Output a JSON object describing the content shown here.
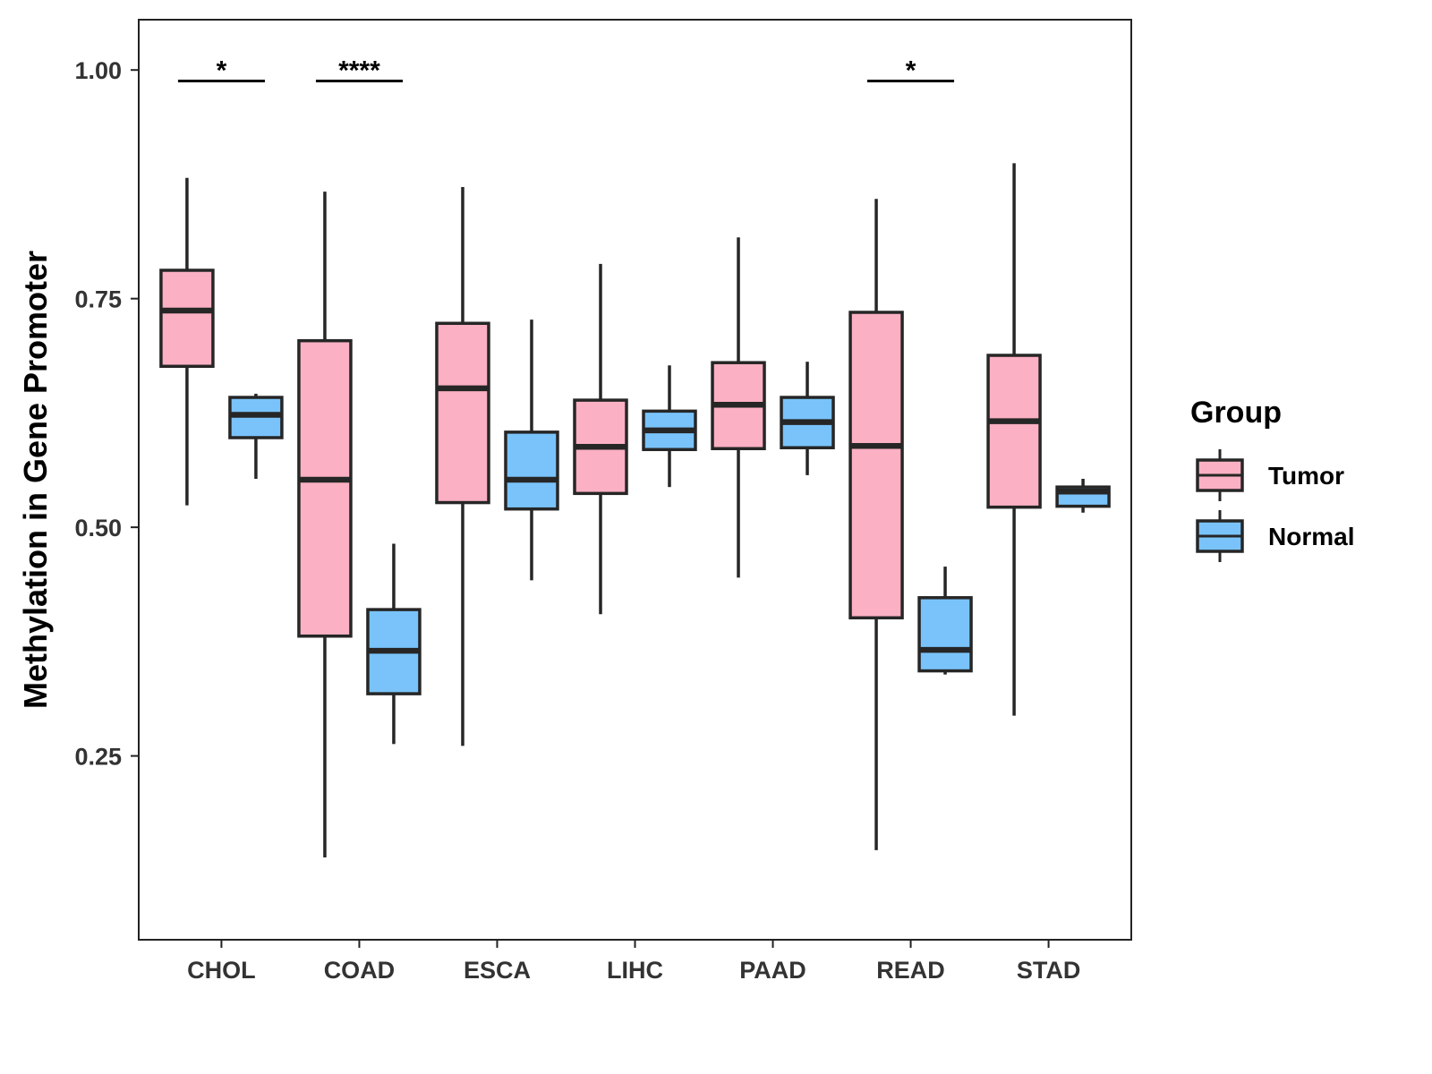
{
  "chart_data": {
    "type": "boxplot",
    "title": "",
    "xlabel": "",
    "ylabel": "Methylation in Gene Promoter",
    "ylim": [
      0.049,
      1.055
    ],
    "yticks": [
      "0.25",
      "0.50",
      "0.75",
      "1.00"
    ],
    "ytick_values": [
      0.25,
      0.5,
      0.75,
      1.0
    ],
    "categories": [
      "CHOL",
      "COAD",
      "ESCA",
      "LIHC",
      "PAAD",
      "READ",
      "STAD"
    ],
    "grid": false,
    "legend": {
      "title": "Group",
      "placement": "right",
      "entries": [
        "Tumor",
        "Normal"
      ]
    },
    "colors": {
      "Tumor": "#FBB0C3",
      "Normal": "#79C3FA",
      "stroke": "#262626"
    },
    "series": [
      {
        "name": "Tumor",
        "boxes": [
          {
            "min": 0.524,
            "q1": 0.676,
            "median": 0.737,
            "q3": 0.781,
            "max": 0.882
          },
          {
            "min": 0.139,
            "q1": 0.381,
            "median": 0.552,
            "q3": 0.704,
            "max": 0.867
          },
          {
            "min": 0.261,
            "q1": 0.527,
            "median": 0.652,
            "q3": 0.723,
            "max": 0.872
          },
          {
            "min": 0.405,
            "q1": 0.537,
            "median": 0.588,
            "q3": 0.639,
            "max": 0.788
          },
          {
            "min": 0.445,
            "q1": 0.586,
            "median": 0.634,
            "q3": 0.68,
            "max": 0.817
          },
          {
            "min": 0.147,
            "q1": 0.401,
            "median": 0.589,
            "q3": 0.735,
            "max": 0.859
          },
          {
            "min": 0.294,
            "q1": 0.522,
            "median": 0.616,
            "q3": 0.688,
            "max": 0.898
          }
        ]
      },
      {
        "name": "Normal",
        "boxes": [
          {
            "min": 0.553,
            "q1": 0.598,
            "median": 0.623,
            "q3": 0.642,
            "max": 0.646
          },
          {
            "min": 0.263,
            "q1": 0.318,
            "median": 0.365,
            "q3": 0.41,
            "max": 0.482
          },
          {
            "min": 0.442,
            "q1": 0.52,
            "median": 0.552,
            "q3": 0.604,
            "max": 0.727
          },
          {
            "min": 0.544,
            "q1": 0.585,
            "median": 0.606,
            "q3": 0.627,
            "max": 0.677
          },
          {
            "min": 0.557,
            "q1": 0.587,
            "median": 0.615,
            "q3": 0.642,
            "max": 0.681
          },
          {
            "min": 0.339,
            "q1": 0.343,
            "median": 0.366,
            "q3": 0.423,
            "max": 0.457
          },
          {
            "min": 0.516,
            "q1": 0.523,
            "median": 0.539,
            "q3": 0.544,
            "max": 0.553
          }
        ]
      }
    ],
    "annotations": [
      {
        "category": "CHOL",
        "label": "*",
        "y": 0.988
      },
      {
        "category": "COAD",
        "label": "****",
        "y": 0.988
      },
      {
        "category": "READ",
        "label": "*",
        "y": 0.988
      }
    ]
  }
}
